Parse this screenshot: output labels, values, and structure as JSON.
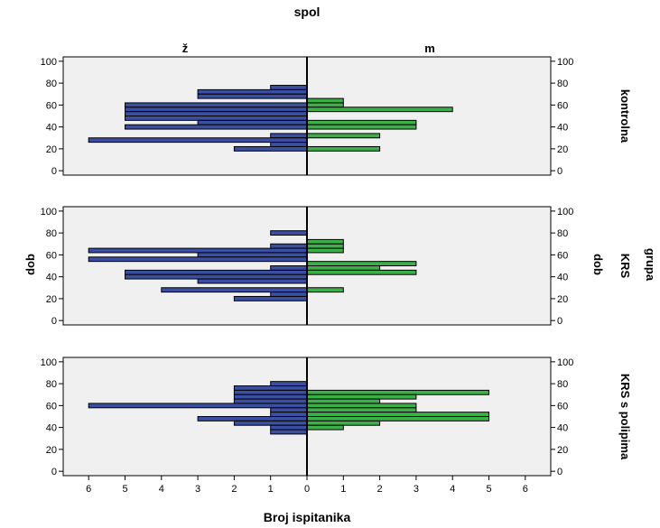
{
  "chart_data": {
    "type": "bar",
    "subtype": "population-pyramid",
    "orientation": "horizontal",
    "title": "spol",
    "xlabel": "Broj ispitanika",
    "ylabel_left": "dob",
    "ylabel_right": "dob",
    "panel_group_label": "grupa",
    "column_labels": [
      "ž",
      "m"
    ],
    "x_ticks": [
      "6",
      "5",
      "4",
      "3",
      "2",
      "1",
      "0",
      "1",
      "2",
      "3",
      "4",
      "5",
      "6"
    ],
    "x_range": [
      0,
      6.5
    ],
    "y_ticks": [
      "0",
      "20",
      "40",
      "60",
      "80",
      "100"
    ],
    "y_range": [
      -4,
      104
    ],
    "bin_width": 4,
    "colors": {
      "female": "#3b4fa0",
      "male": "#3daf49",
      "panel_bg": "#f0f0f0",
      "outline": "#000000"
    },
    "panels": [
      {
        "name": "kontrolna",
        "female": [
          {
            "age": 74,
            "count": 1
          },
          {
            "age": 70,
            "count": 3
          },
          {
            "age": 66,
            "count": 3
          },
          {
            "age": 58,
            "count": 5
          },
          {
            "age": 54,
            "count": 5
          },
          {
            "age": 50,
            "count": 5
          },
          {
            "age": 46,
            "count": 5
          },
          {
            "age": 42,
            "count": 3
          },
          {
            "age": 38,
            "count": 5
          },
          {
            "age": 30,
            "count": 1
          },
          {
            "age": 26,
            "count": 6
          },
          {
            "age": 22,
            "count": 1
          },
          {
            "age": 18,
            "count": 2
          }
        ],
        "male": [
          {
            "age": 62,
            "count": 1
          },
          {
            "age": 58,
            "count": 1
          },
          {
            "age": 54,
            "count": 4
          },
          {
            "age": 42,
            "count": 3
          },
          {
            "age": 38,
            "count": 3
          },
          {
            "age": 30,
            "count": 2
          },
          {
            "age": 18,
            "count": 2
          }
        ]
      },
      {
        "name": "KRS",
        "female": [
          {
            "age": 78,
            "count": 1
          },
          {
            "age": 66,
            "count": 1
          },
          {
            "age": 62,
            "count": 6
          },
          {
            "age": 58,
            "count": 3
          },
          {
            "age": 54,
            "count": 6
          },
          {
            "age": 46,
            "count": 1
          },
          {
            "age": 42,
            "count": 5
          },
          {
            "age": 38,
            "count": 5
          },
          {
            "age": 34,
            "count": 3
          },
          {
            "age": 26,
            "count": 4
          },
          {
            "age": 22,
            "count": 1
          },
          {
            "age": 18,
            "count": 2
          }
        ],
        "male": [
          {
            "age": 70,
            "count": 1
          },
          {
            "age": 66,
            "count": 1
          },
          {
            "age": 62,
            "count": 1
          },
          {
            "age": 50,
            "count": 3
          },
          {
            "age": 46,
            "count": 2
          },
          {
            "age": 42,
            "count": 3
          },
          {
            "age": 26,
            "count": 1
          }
        ]
      },
      {
        "name": "KRS s polipima",
        "female": [
          {
            "age": 78,
            "count": 1
          },
          {
            "age": 74,
            "count": 2
          },
          {
            "age": 70,
            "count": 2
          },
          {
            "age": 66,
            "count": 2
          },
          {
            "age": 62,
            "count": 2
          },
          {
            "age": 58,
            "count": 6
          },
          {
            "age": 54,
            "count": 1
          },
          {
            "age": 50,
            "count": 1
          },
          {
            "age": 46,
            "count": 3
          },
          {
            "age": 42,
            "count": 2
          },
          {
            "age": 38,
            "count": 1
          },
          {
            "age": 34,
            "count": 1
          }
        ],
        "male": [
          {
            "age": 70,
            "count": 5
          },
          {
            "age": 66,
            "count": 3
          },
          {
            "age": 62,
            "count": 2
          },
          {
            "age": 58,
            "count": 3
          },
          {
            "age": 54,
            "count": 3
          },
          {
            "age": 50,
            "count": 5
          },
          {
            "age": 46,
            "count": 5
          },
          {
            "age": 42,
            "count": 2
          },
          {
            "age": 38,
            "count": 1
          }
        ]
      }
    ]
  }
}
